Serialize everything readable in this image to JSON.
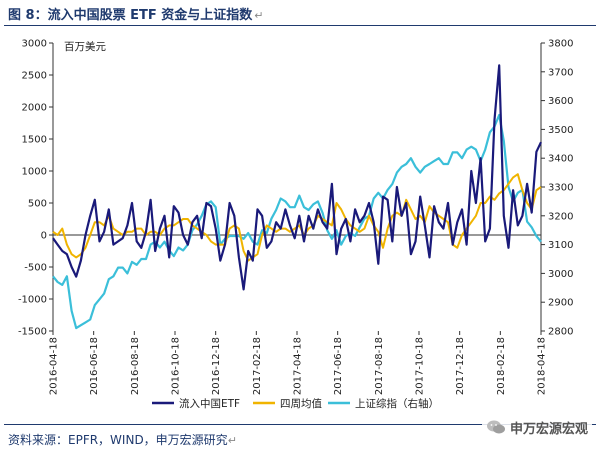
{
  "header": {
    "title": "图 8：流入中国股票 ETF 资金与上证指数",
    "mark": "↵"
  },
  "footer": {
    "source": "资料来源：EPFR，WIND，申万宏源研究",
    "mark": "↵"
  },
  "watermark": {
    "text": "申万宏源宏观"
  },
  "colors": {
    "etf": "#1a1a7a",
    "ma4": "#f0b400",
    "shci": "#3bbfd9",
    "axis": "#333333",
    "title": "#1f3a6e"
  },
  "chart_data": {
    "type": "line",
    "title": "",
    "unit_label": "百万美元",
    "y_left": {
      "min": -1500,
      "max": 3000,
      "ticks": [
        -1500,
        -1000,
        -500,
        0,
        500,
        1000,
        1500,
        2000,
        2500,
        3000
      ]
    },
    "y_right": {
      "min": 2800,
      "max": 3800,
      "ticks": [
        2800,
        2900,
        3000,
        3100,
        3200,
        3300,
        3400,
        3500,
        3600,
        3700,
        3800
      ]
    },
    "x_ticks": [
      "2016-04-18",
      "2016-06-18",
      "2016-08-18",
      "2016-10-18",
      "2016-12-18",
      "2017-02-18",
      "2017-04-18",
      "2017-06-18",
      "2017-08-18",
      "2017-10-18",
      "2017-12-18",
      "2018-02-18",
      "2018-04-18"
    ],
    "n_points": 106,
    "series": [
      {
        "name": "流入中国ETF",
        "axis": "left",
        "values": [
          -50,
          -150,
          -250,
          -300,
          -500,
          -650,
          -400,
          0,
          300,
          550,
          -100,
          50,
          400,
          -150,
          -100,
          -50,
          150,
          500,
          -100,
          -200,
          50,
          550,
          -250,
          100,
          300,
          -350,
          450,
          350,
          0,
          -150,
          200,
          300,
          -50,
          500,
          450,
          100,
          -400,
          -150,
          500,
          300,
          -350,
          -850,
          -250,
          -400,
          400,
          300,
          -200,
          -100,
          200,
          100,
          400,
          150,
          -50,
          300,
          -100,
          300,
          100,
          400,
          200,
          100,
          800,
          -300,
          100,
          250,
          -100,
          400,
          200,
          300,
          500,
          200,
          -450,
          600,
          550,
          -100,
          750,
          300,
          500,
          -300,
          -100,
          600,
          150,
          -350,
          450,
          200,
          100,
          500,
          -150,
          200,
          400,
          -150,
          1000,
          500,
          1200,
          -100,
          100,
          1800,
          2650,
          300,
          -200,
          700,
          150,
          300,
          800,
          350,
          1300,
          1450
        ]
      },
      {
        "name": "四周均值",
        "axis": "left",
        "values": [
          50,
          0,
          100,
          -150,
          -300,
          -350,
          -300,
          -200,
          0,
          200,
          200,
          150,
          300,
          100,
          50,
          0,
          50,
          50,
          100,
          100,
          0,
          50,
          50,
          0,
          100,
          150,
          150,
          200,
          250,
          250,
          150,
          100,
          50,
          0,
          -100,
          -150,
          -150,
          -150,
          100,
          150,
          100,
          -250,
          -400,
          -350,
          -300,
          0,
          150,
          100,
          50,
          100,
          100,
          50,
          100,
          150,
          0,
          100,
          150,
          300,
          250,
          200,
          150,
          500,
          400,
          250,
          150,
          100,
          50,
          100,
          300,
          150,
          50,
          -200,
          100,
          300,
          350,
          300,
          550,
          400,
          250,
          300,
          200,
          450,
          350,
          300,
          250,
          200,
          -150,
          -200,
          0,
          100,
          200,
          300,
          500,
          500,
          600,
          550,
          650,
          700,
          800,
          900,
          950,
          700,
          500,
          400,
          700,
          750
        ]
      },
      {
        "name": "上证综指（右轴）",
        "axis": "right",
        "values": [
          2990,
          2970,
          2960,
          2990,
          2870,
          2810,
          2820,
          2830,
          2840,
          2890,
          2910,
          2930,
          2980,
          2990,
          3020,
          3020,
          3000,
          3040,
          3030,
          3050,
          3050,
          3100,
          3110,
          3090,
          3110,
          3080,
          3060,
          3090,
          3080,
          3100,
          3150,
          3170,
          3200,
          3240,
          3250,
          3230,
          3100,
          3120,
          3130,
          3130,
          3130,
          3120,
          3140,
          3110,
          3100,
          3150,
          3140,
          3190,
          3220,
          3260,
          3250,
          3230,
          3230,
          3270,
          3230,
          3220,
          3240,
          3250,
          3210,
          3150,
          3120,
          3150,
          3100,
          3130,
          3140,
          3130,
          3160,
          3190,
          3200,
          3260,
          3280,
          3260,
          3290,
          3310,
          3350,
          3370,
          3380,
          3400,
          3370,
          3350,
          3370,
          3380,
          3390,
          3400,
          3380,
          3380,
          3420,
          3420,
          3400,
          3430,
          3440,
          3430,
          3390,
          3430,
          3490,
          3510,
          3550,
          3460,
          3300,
          3250,
          3280,
          3290,
          3180,
          3160,
          3130,
          3110
        ]
      }
    ],
    "legend": [
      "流入中国ETF",
      "四周均值",
      "上证综指（右轴）"
    ]
  }
}
